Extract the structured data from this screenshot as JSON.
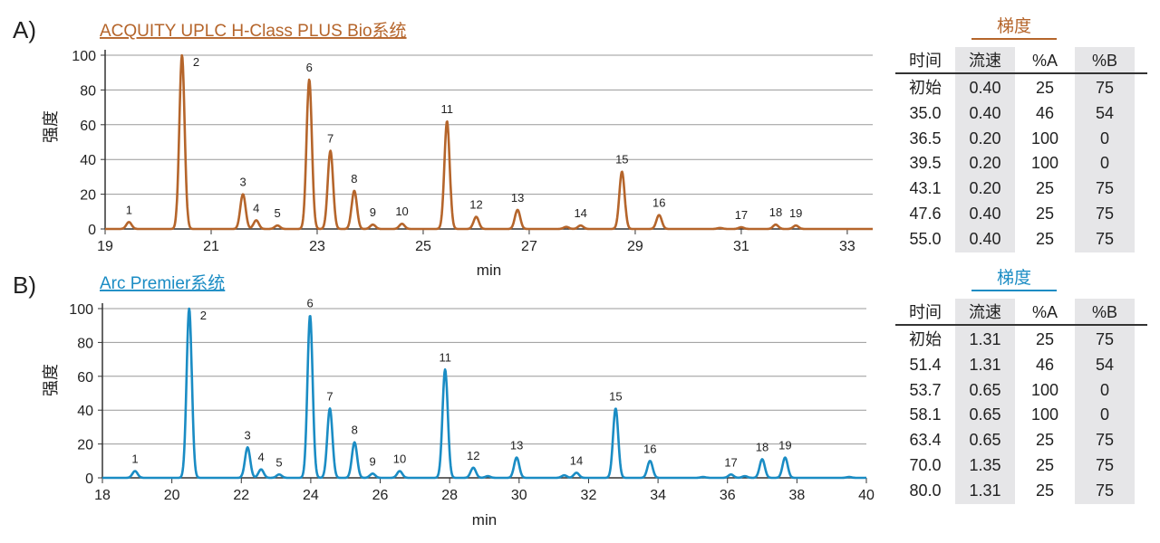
{
  "chart_data": [
    {
      "type": "line",
      "panel_label": "A)",
      "title": "ACQUITY UPLC H-Class PLUS Bio系统",
      "color": "#b5652b",
      "xlabel": "min",
      "ylabel": "强度",
      "xlim": [
        19,
        33.48
      ],
      "ylim": [
        0,
        100
      ],
      "sigma": 0.05,
      "xticks": [
        "19",
        "21",
        "23",
        "25",
        "27",
        "29",
        "31",
        "33"
      ],
      "yticks": [
        "0",
        "20",
        "40",
        "60",
        "80",
        "100"
      ],
      "peaks": [
        {
          "label": "1",
          "x": 19.45,
          "y": 4
        },
        {
          "label": "2",
          "x": 20.45,
          "y": 100
        },
        {
          "label": "3",
          "x": 21.6,
          "y": 20
        },
        {
          "label": "4",
          "x": 21.85,
          "y": 5
        },
        {
          "label": "5",
          "x": 22.25,
          "y": 2
        },
        {
          "label": "6",
          "x": 22.85,
          "y": 86
        },
        {
          "label": "7",
          "x": 23.25,
          "y": 45
        },
        {
          "label": "8",
          "x": 23.7,
          "y": 22
        },
        {
          "label": "9",
          "x": 24.05,
          "y": 2.5
        },
        {
          "label": "10",
          "x": 24.6,
          "y": 3
        },
        {
          "label": "11",
          "x": 25.45,
          "y": 62
        },
        {
          "label": "12",
          "x": 26.0,
          "y": 7
        },
        {
          "label": "13",
          "x": 26.78,
          "y": 11
        },
        {
          "label": "14",
          "x": 27.97,
          "y": 2
        },
        {
          "label": "15",
          "x": 28.75,
          "y": 33
        },
        {
          "label": "16",
          "x": 29.45,
          "y": 8
        },
        {
          "label": "17",
          "x": 31.0,
          "y": 1
        },
        {
          "label": "18",
          "x": 31.65,
          "y": 2.5
        },
        {
          "label": "19",
          "x": 32.03,
          "y": 2
        }
      ],
      "minor_peaks": [
        {
          "x": 27.7,
          "y": 1.2
        },
        {
          "x": 30.6,
          "y": 0.6
        }
      ]
    },
    {
      "type": "line",
      "panel_label": "B)",
      "title": "Arc Premier系统",
      "color": "#1a8cc4",
      "xlabel": "min",
      "ylabel": "强度",
      "xlim": [
        18,
        40
      ],
      "ylim": [
        0,
        100
      ],
      "sigma": 0.075,
      "xticks": [
        "18",
        "20",
        "22",
        "24",
        "26",
        "28",
        "30",
        "32",
        "34",
        "36",
        "38",
        "40"
      ],
      "yticks": [
        "0",
        "20",
        "40",
        "60",
        "80",
        "100"
      ],
      "peaks": [
        {
          "label": "1",
          "x": 18.94,
          "y": 4
        },
        {
          "label": "2",
          "x": 20.5,
          "y": 100
        },
        {
          "label": "3",
          "x": 22.18,
          "y": 18
        },
        {
          "label": "4",
          "x": 22.57,
          "y": 5
        },
        {
          "label": "5",
          "x": 23.09,
          "y": 2
        },
        {
          "label": "6",
          "x": 23.98,
          "y": 96
        },
        {
          "label": "7",
          "x": 24.55,
          "y": 41
        },
        {
          "label": "8",
          "x": 25.26,
          "y": 21
        },
        {
          "label": "9",
          "x": 25.78,
          "y": 2.5
        },
        {
          "label": "10",
          "x": 26.56,
          "y": 4
        },
        {
          "label": "11",
          "x": 27.87,
          "y": 64
        },
        {
          "label": "12",
          "x": 28.68,
          "y": 6
        },
        {
          "label": "13",
          "x": 29.93,
          "y": 12
        },
        {
          "label": "14",
          "x": 31.65,
          "y": 3
        },
        {
          "label": "15",
          "x": 32.78,
          "y": 41
        },
        {
          "label": "16",
          "x": 33.77,
          "y": 10
        },
        {
          "label": "17",
          "x": 36.1,
          "y": 2
        },
        {
          "label": "18",
          "x": 37.0,
          "y": 11
        },
        {
          "label": "19",
          "x": 37.66,
          "y": 12
        }
      ],
      "minor_peaks": [
        {
          "x": 29.1,
          "y": 1
        },
        {
          "x": 31.3,
          "y": 1.5
        },
        {
          "x": 35.3,
          "y": 0.5
        },
        {
          "x": 36.5,
          "y": 1
        },
        {
          "x": 39.5,
          "y": 0.5
        }
      ]
    }
  ],
  "tables": [
    {
      "title": "梯度",
      "color": "#b5652b",
      "headers": [
        "时间",
        "流速",
        "%A",
        "%B"
      ],
      "rows": [
        [
          "初始",
          "0.40",
          "25",
          "75"
        ],
        [
          "35.0",
          "0.40",
          "46",
          "54"
        ],
        [
          "36.5",
          "0.20",
          "100",
          "0"
        ],
        [
          "39.5",
          "0.20",
          "100",
          "0"
        ],
        [
          "43.1",
          "0.20",
          "25",
          "75"
        ],
        [
          "47.6",
          "0.40",
          "25",
          "75"
        ],
        [
          "55.0",
          "0.40",
          "25",
          "75"
        ]
      ]
    },
    {
      "title": "梯度",
      "color": "#1a8cc4",
      "headers": [
        "时间",
        "流速",
        "%A",
        "%B"
      ],
      "rows": [
        [
          "初始",
          "1.31",
          "25",
          "75"
        ],
        [
          "51.4",
          "1.31",
          "46",
          "54"
        ],
        [
          "53.7",
          "0.65",
          "100",
          "0"
        ],
        [
          "58.1",
          "0.65",
          "100",
          "0"
        ],
        [
          "63.4",
          "0.65",
          "25",
          "75"
        ],
        [
          "70.0",
          "1.35",
          "25",
          "75"
        ],
        [
          "80.0",
          "1.31",
          "25",
          "75"
        ]
      ]
    }
  ]
}
